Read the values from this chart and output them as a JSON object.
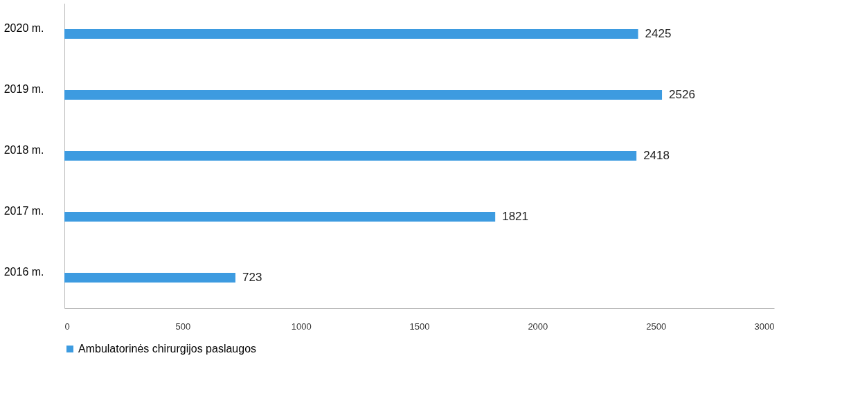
{
  "chart_data": {
    "type": "bar",
    "orientation": "horizontal",
    "categories": [
      "2020 m.",
      "2019 m.",
      "2018 m.",
      "2017 m.",
      "2016 m."
    ],
    "series": [
      {
        "name": "Ambulatorinės chirurgijos paslaugos",
        "color": "#3d9be0",
        "values": [
          2425,
          2526,
          2418,
          1821,
          723
        ]
      }
    ],
    "xlim": [
      0,
      3000
    ],
    "xticks": [
      0,
      500,
      1000,
      1500,
      2000,
      2500,
      3000
    ],
    "data_labels": true,
    "grid": false,
    "legend": "bottom"
  }
}
